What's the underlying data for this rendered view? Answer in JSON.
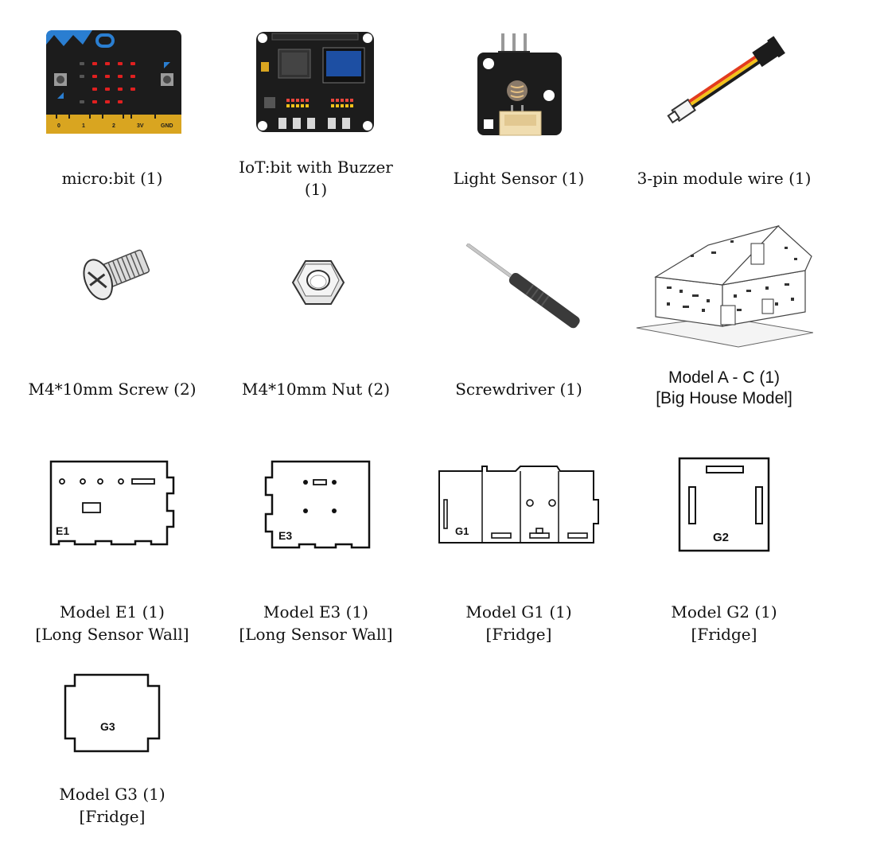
{
  "parts": {
    "microbit": {
      "line1": "micro:bit (1)",
      "pins": {
        "p0": "0",
        "p1": "1",
        "p2": "2",
        "p3v": "3V",
        "gnd": "GND"
      }
    },
    "iotbit": {
      "line1": "IoT:bit with Buzzer",
      "line2": "(1)"
    },
    "light_sensor": {
      "line1": "Light Sensor (1)"
    },
    "wire": {
      "line1": "3-pin module wire (1)"
    },
    "screw": {
      "line1": "M4*10mm Screw (2)"
    },
    "nut": {
      "line1": "M4*10mm Nut (2)"
    },
    "screwdriver": {
      "line1": "Screwdriver (1)"
    },
    "house": {
      "line1": "Model A -  C (1)",
      "line2": "[Big House Model]"
    },
    "e1": {
      "line1": "Model E1 (1)",
      "line2": "[Long Sensor Wall]",
      "piece_label": "E1"
    },
    "e3": {
      "line1": "Model E3 (1)",
      "line2": "[Long Sensor Wall]",
      "piece_label": "E3"
    },
    "g1": {
      "line1": "Model G1 (1)",
      "line2": "[Fridge]",
      "piece_label": "G1"
    },
    "g2": {
      "line1": "Model G2 (1)",
      "line2": "[Fridge]",
      "piece_label": "G2"
    },
    "g3": {
      "line1": "Model G3 (1)",
      "line2": "[Fridge]",
      "piece_label": "G3"
    }
  },
  "icons": [
    "microbit-board-image",
    "iotbit-board-image",
    "light-sensor-image",
    "wire-image",
    "screw-image",
    "nut-image",
    "screwdriver-image",
    "house-model-image",
    "e1-piece-drawing",
    "e3-piece-drawing",
    "g1-piece-drawing",
    "g2-piece-drawing",
    "g3-piece-drawing"
  ],
  "colors": {
    "board": "#1c1c1c",
    "gold": "#d9a520",
    "accent": "#2a7ed1",
    "led": "#e02020",
    "wire_red": "#e23b1e",
    "wire_yellow": "#f2c21a",
    "connector": "#f0ddb0",
    "nut": "#e6e6e6"
  }
}
